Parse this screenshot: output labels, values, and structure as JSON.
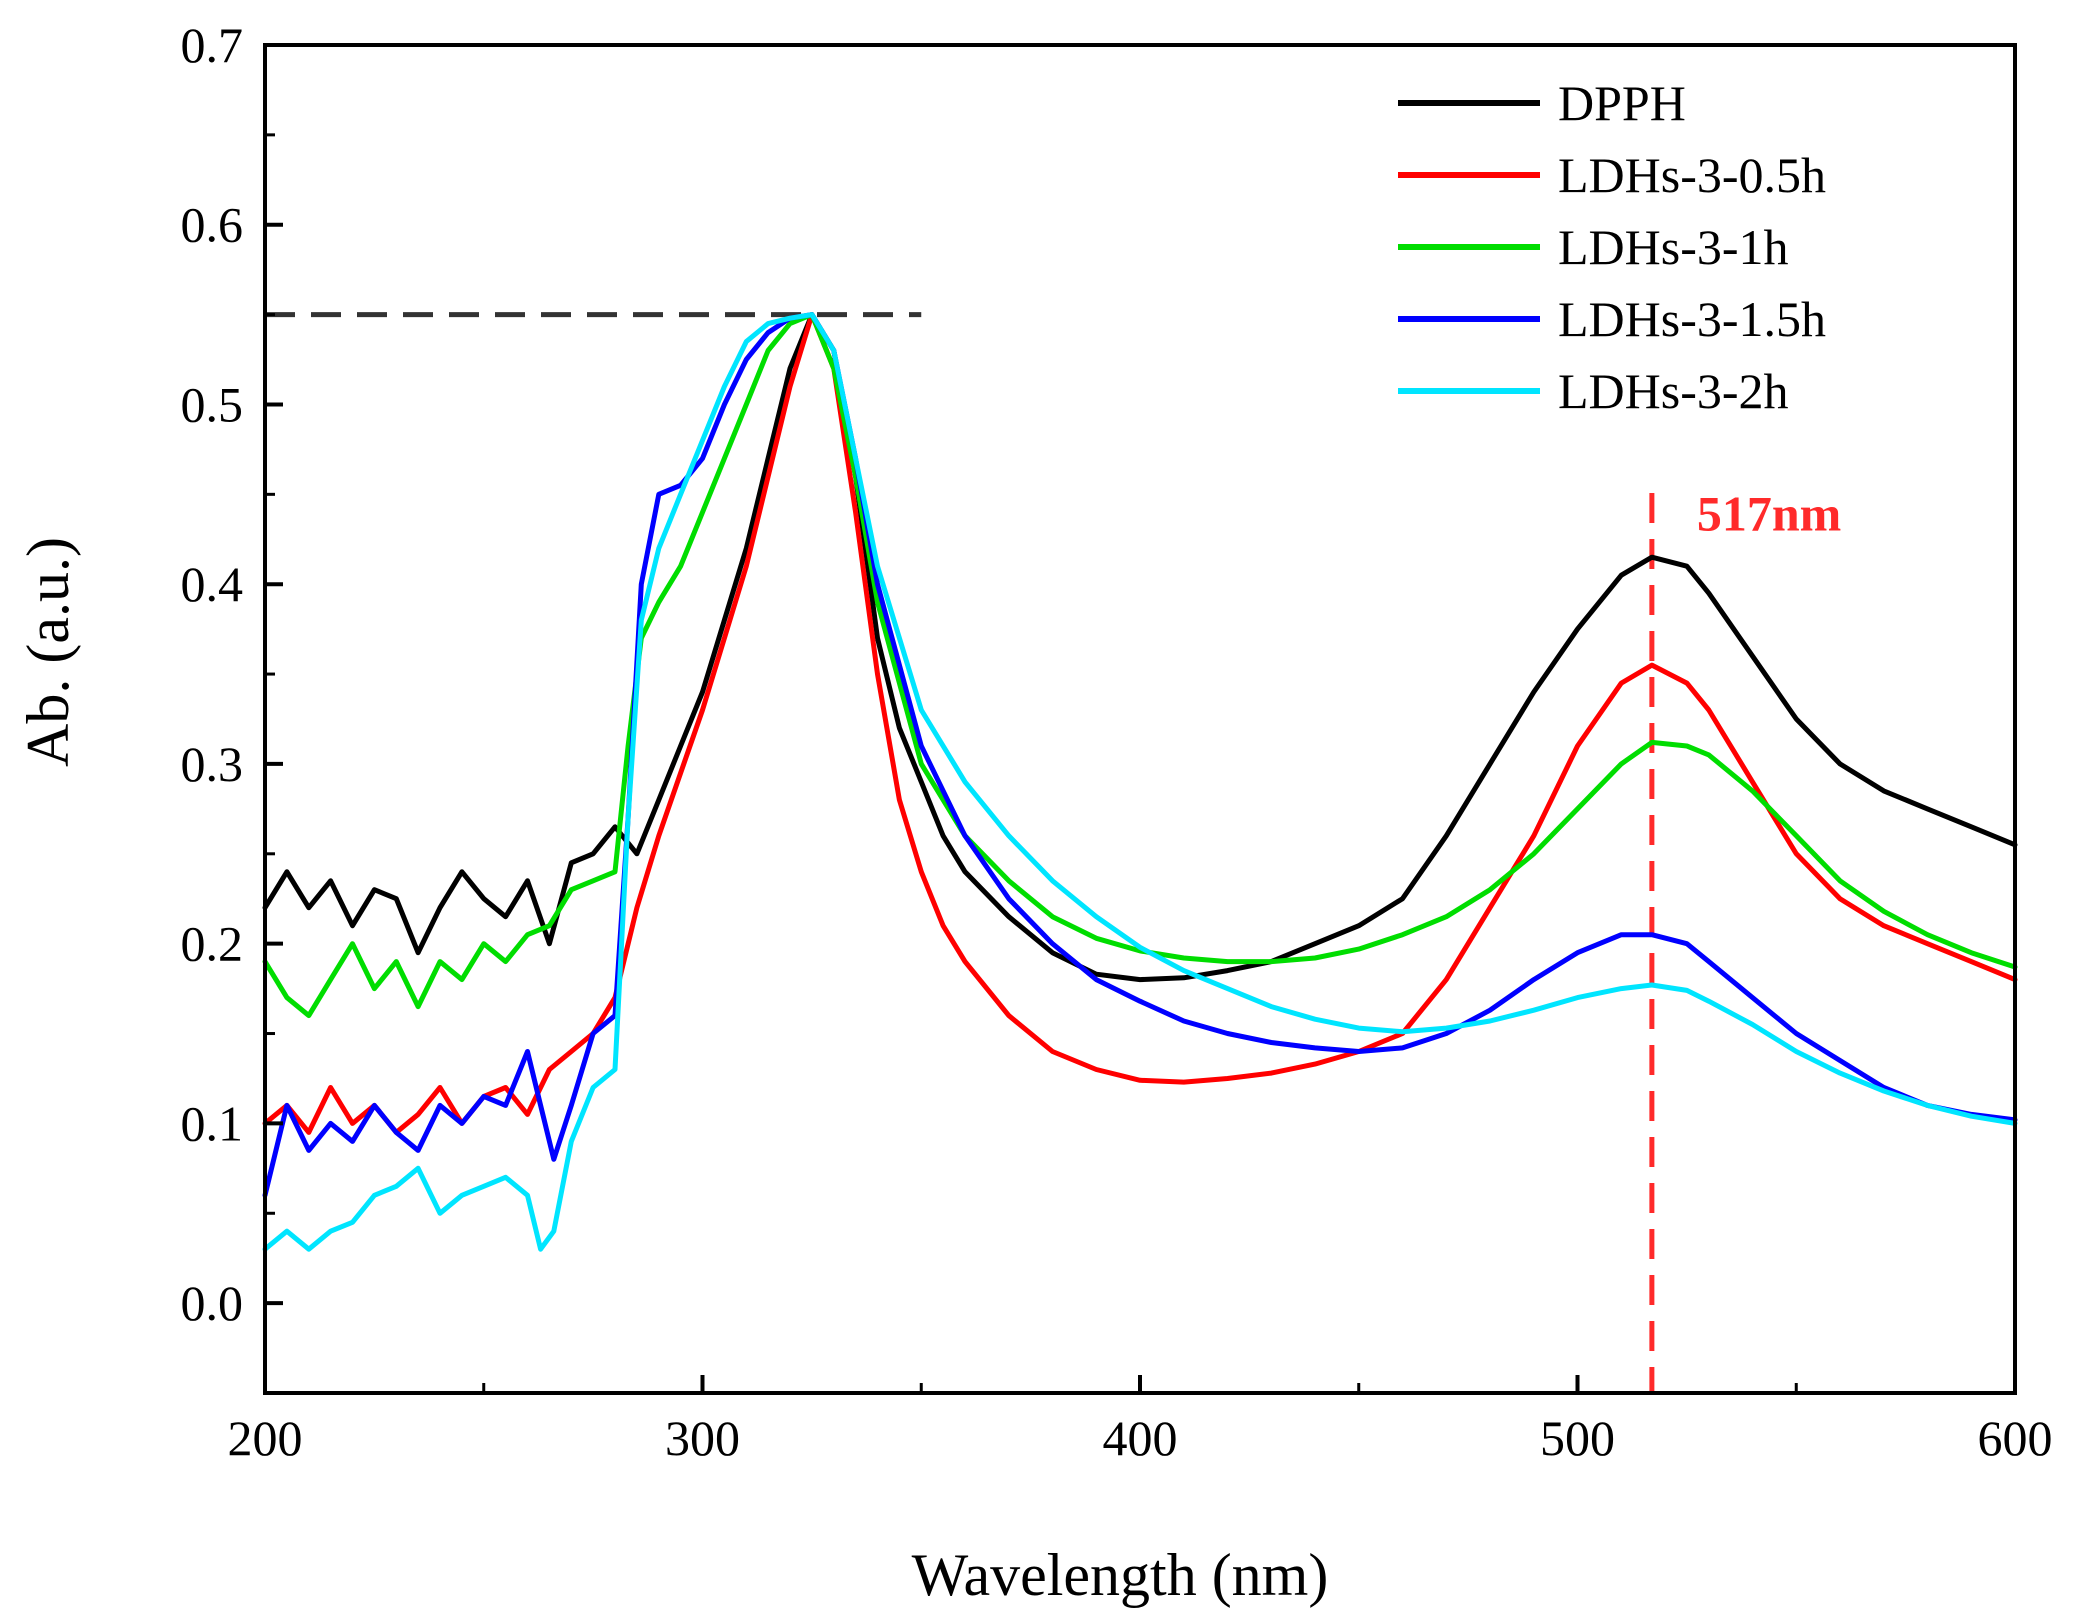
{
  "chart_data": {
    "type": "line",
    "title": "",
    "xlabel": "Wavelength (nm)",
    "ylabel": "Ab. (a.u.)",
    "xlim": [
      200,
      600
    ],
    "ylim": [
      -0.05,
      0.7
    ],
    "xticks": [
      200,
      300,
      400,
      500,
      600
    ],
    "xtick_labels": [
      "200",
      "300",
      "400",
      "500",
      "600"
    ],
    "yticks": [
      0.0,
      0.1,
      0.2,
      0.3,
      0.4,
      0.5,
      0.6,
      0.7
    ],
    "ytick_labels": [
      "0.0",
      "0.1",
      "0.2",
      "0.3",
      "0.4",
      "0.5",
      "0.6",
      "0.7"
    ],
    "grid": false,
    "legend_position": "top-right",
    "reference_lines": [
      {
        "orientation": "horizontal",
        "y": 0.55,
        "x_from": 200,
        "x_to": 350,
        "color": "#333333",
        "style": "dashed"
      },
      {
        "orientation": "vertical",
        "x": 517,
        "color": "#ff2a2a",
        "style": "dashed"
      }
    ],
    "annotation": {
      "text": "517nm",
      "x": 517,
      "y": 0.44,
      "color": "#ff2a2a"
    },
    "series": [
      {
        "name": "DPPH",
        "color": "#000000",
        "x": [
          200,
          205,
          210,
          215,
          220,
          225,
          230,
          235,
          240,
          245,
          250,
          255,
          260,
          265,
          270,
          275,
          280,
          285,
          290,
          295,
          300,
          305,
          310,
          315,
          320,
          325,
          330,
          335,
          340,
          345,
          350,
          355,
          360,
          370,
          380,
          390,
          400,
          410,
          420,
          430,
          440,
          450,
          460,
          470,
          480,
          490,
          500,
          510,
          517,
          525,
          530,
          540,
          550,
          560,
          570,
          580,
          590,
          600
        ],
        "y": [
          0.22,
          0.24,
          0.22,
          0.235,
          0.21,
          0.23,
          0.225,
          0.195,
          0.22,
          0.24,
          0.225,
          0.215,
          0.235,
          0.2,
          0.245,
          0.25,
          0.265,
          0.25,
          0.28,
          0.31,
          0.34,
          0.38,
          0.42,
          0.47,
          0.52,
          0.55,
          0.53,
          0.46,
          0.37,
          0.32,
          0.29,
          0.26,
          0.24,
          0.215,
          0.195,
          0.183,
          0.18,
          0.181,
          0.185,
          0.19,
          0.2,
          0.21,
          0.225,
          0.26,
          0.3,
          0.34,
          0.375,
          0.405,
          0.415,
          0.41,
          0.395,
          0.36,
          0.325,
          0.3,
          0.285,
          0.275,
          0.265,
          0.255
        ]
      },
      {
        "name": "LDHs-3-0.5h",
        "color": "#ff0000",
        "x": [
          200,
          205,
          210,
          215,
          220,
          225,
          230,
          235,
          240,
          245,
          250,
          255,
          260,
          265,
          270,
          275,
          280,
          285,
          290,
          300,
          310,
          320,
          325,
          330,
          335,
          340,
          345,
          350,
          355,
          360,
          370,
          380,
          390,
          400,
          410,
          420,
          430,
          440,
          450,
          460,
          470,
          480,
          490,
          500,
          510,
          517,
          525,
          530,
          540,
          550,
          560,
          570,
          580,
          590,
          600
        ],
        "y": [
          0.1,
          0.11,
          0.095,
          0.12,
          0.1,
          0.11,
          0.095,
          0.105,
          0.12,
          0.1,
          0.115,
          0.12,
          0.105,
          0.13,
          0.14,
          0.15,
          0.17,
          0.22,
          0.26,
          0.33,
          0.41,
          0.51,
          0.55,
          0.52,
          0.44,
          0.35,
          0.28,
          0.24,
          0.21,
          0.19,
          0.16,
          0.14,
          0.13,
          0.124,
          0.123,
          0.125,
          0.128,
          0.133,
          0.14,
          0.15,
          0.18,
          0.22,
          0.26,
          0.31,
          0.345,
          0.355,
          0.345,
          0.33,
          0.29,
          0.25,
          0.225,
          0.21,
          0.2,
          0.19,
          0.18
        ]
      },
      {
        "name": "LDHs-3-1h",
        "color": "#00dd00",
        "x": [
          200,
          205,
          210,
          215,
          220,
          225,
          230,
          235,
          240,
          245,
          250,
          255,
          260,
          265,
          270,
          275,
          280,
          283,
          286,
          290,
          295,
          300,
          305,
          310,
          315,
          320,
          325,
          330,
          335,
          340,
          350,
          360,
          370,
          380,
          390,
          400,
          410,
          420,
          430,
          440,
          450,
          460,
          470,
          480,
          490,
          500,
          510,
          517,
          525,
          530,
          540,
          550,
          560,
          570,
          580,
          590,
          600
        ],
        "y": [
          0.19,
          0.17,
          0.16,
          0.18,
          0.2,
          0.175,
          0.19,
          0.165,
          0.19,
          0.18,
          0.2,
          0.19,
          0.205,
          0.21,
          0.23,
          0.235,
          0.24,
          0.31,
          0.37,
          0.39,
          0.41,
          0.44,
          0.47,
          0.5,
          0.53,
          0.545,
          0.55,
          0.52,
          0.46,
          0.39,
          0.3,
          0.26,
          0.235,
          0.215,
          0.203,
          0.196,
          0.192,
          0.19,
          0.19,
          0.192,
          0.197,
          0.205,
          0.215,
          0.23,
          0.25,
          0.275,
          0.3,
          0.312,
          0.31,
          0.305,
          0.285,
          0.26,
          0.235,
          0.218,
          0.205,
          0.195,
          0.187
        ]
      },
      {
        "name": "LDHs-3-1.5h",
        "color": "#0000ff",
        "x": [
          200,
          205,
          210,
          215,
          220,
          225,
          230,
          235,
          240,
          245,
          250,
          255,
          260,
          263,
          266,
          270,
          275,
          280,
          283,
          286,
          290,
          295,
          300,
          305,
          310,
          315,
          320,
          325,
          330,
          335,
          340,
          350,
          360,
          370,
          380,
          390,
          400,
          410,
          420,
          430,
          440,
          450,
          460,
          470,
          480,
          490,
          500,
          510,
          517,
          525,
          530,
          540,
          550,
          560,
          570,
          580,
          590,
          600
        ],
        "y": [
          0.06,
          0.11,
          0.085,
          0.1,
          0.09,
          0.11,
          0.095,
          0.085,
          0.11,
          0.1,
          0.115,
          0.11,
          0.14,
          0.11,
          0.08,
          0.11,
          0.15,
          0.16,
          0.27,
          0.4,
          0.45,
          0.455,
          0.47,
          0.5,
          0.525,
          0.54,
          0.548,
          0.55,
          0.53,
          0.47,
          0.4,
          0.31,
          0.26,
          0.225,
          0.2,
          0.18,
          0.168,
          0.157,
          0.15,
          0.145,
          0.142,
          0.14,
          0.142,
          0.15,
          0.163,
          0.18,
          0.195,
          0.205,
          0.205,
          0.2,
          0.19,
          0.17,
          0.15,
          0.135,
          0.12,
          0.11,
          0.105,
          0.102
        ]
      },
      {
        "name": "LDHs-3-2h",
        "color": "#00e5ff",
        "x": [
          200,
          205,
          210,
          215,
          220,
          225,
          230,
          235,
          240,
          245,
          250,
          255,
          260,
          263,
          266,
          270,
          275,
          280,
          283,
          286,
          290,
          295,
          300,
          305,
          310,
          315,
          320,
          325,
          330,
          335,
          340,
          350,
          360,
          370,
          380,
          390,
          400,
          410,
          420,
          430,
          440,
          450,
          460,
          470,
          480,
          490,
          500,
          510,
          517,
          525,
          530,
          540,
          550,
          560,
          570,
          580,
          590,
          600
        ],
        "y": [
          0.03,
          0.04,
          0.03,
          0.04,
          0.045,
          0.06,
          0.065,
          0.075,
          0.05,
          0.06,
          0.065,
          0.07,
          0.06,
          0.03,
          0.04,
          0.09,
          0.12,
          0.13,
          0.27,
          0.38,
          0.42,
          0.45,
          0.48,
          0.51,
          0.535,
          0.545,
          0.548,
          0.55,
          0.53,
          0.47,
          0.41,
          0.33,
          0.29,
          0.26,
          0.235,
          0.215,
          0.198,
          0.185,
          0.175,
          0.165,
          0.158,
          0.153,
          0.151,
          0.153,
          0.157,
          0.163,
          0.17,
          0.175,
          0.177,
          0.174,
          0.168,
          0.155,
          0.14,
          0.128,
          0.118,
          0.11,
          0.104,
          0.1
        ]
      }
    ]
  }
}
